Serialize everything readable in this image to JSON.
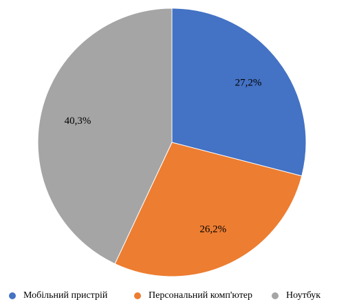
{
  "chart_data": {
    "type": "pie",
    "categories": [
      "Мобільний пристрій",
      "Персональний комп'ютер",
      "Ноутбук"
    ],
    "values": [
      27.2,
      26.2,
      40.3
    ],
    "value_labels": [
      "27,2%",
      "26,2%",
      "40,3%"
    ],
    "colors": [
      "#4472c4",
      "#ed7d31",
      "#a5a5a5"
    ],
    "legend": "bottom"
  }
}
